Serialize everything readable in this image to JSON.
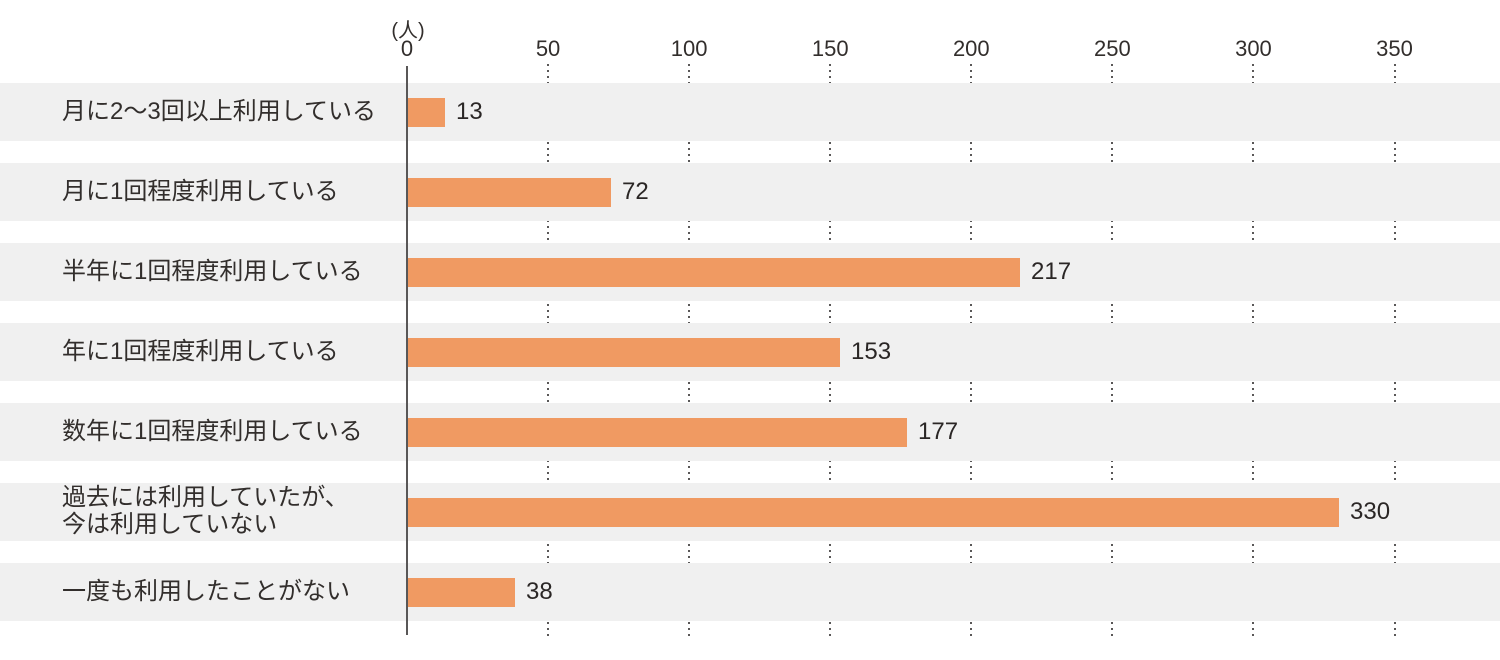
{
  "chart_data": {
    "type": "bar",
    "orientation": "horizontal",
    "title": "",
    "unit_label": "(人)",
    "categories": [
      "月に2〜3回以上利用している",
      "月に1回程度利用している",
      "半年に1回程度利用している",
      "年に1回程度利用している",
      "数年に1回程度利用している",
      "過去には利用していたが、\n今は利用していない",
      "一度も利用したことがない"
    ],
    "values": [
      13,
      72,
      217,
      153,
      177,
      330,
      38
    ],
    "x_ticks": [
      0,
      50,
      100,
      150,
      200,
      250,
      300,
      350
    ],
    "xlim": [
      0,
      388
    ],
    "grid": "dotted-vertical",
    "legend": "none",
    "colors": {
      "bar": "#f09a62",
      "row_band": "#f0f0f0",
      "axis": "#595757",
      "text": "#322e2c"
    }
  }
}
